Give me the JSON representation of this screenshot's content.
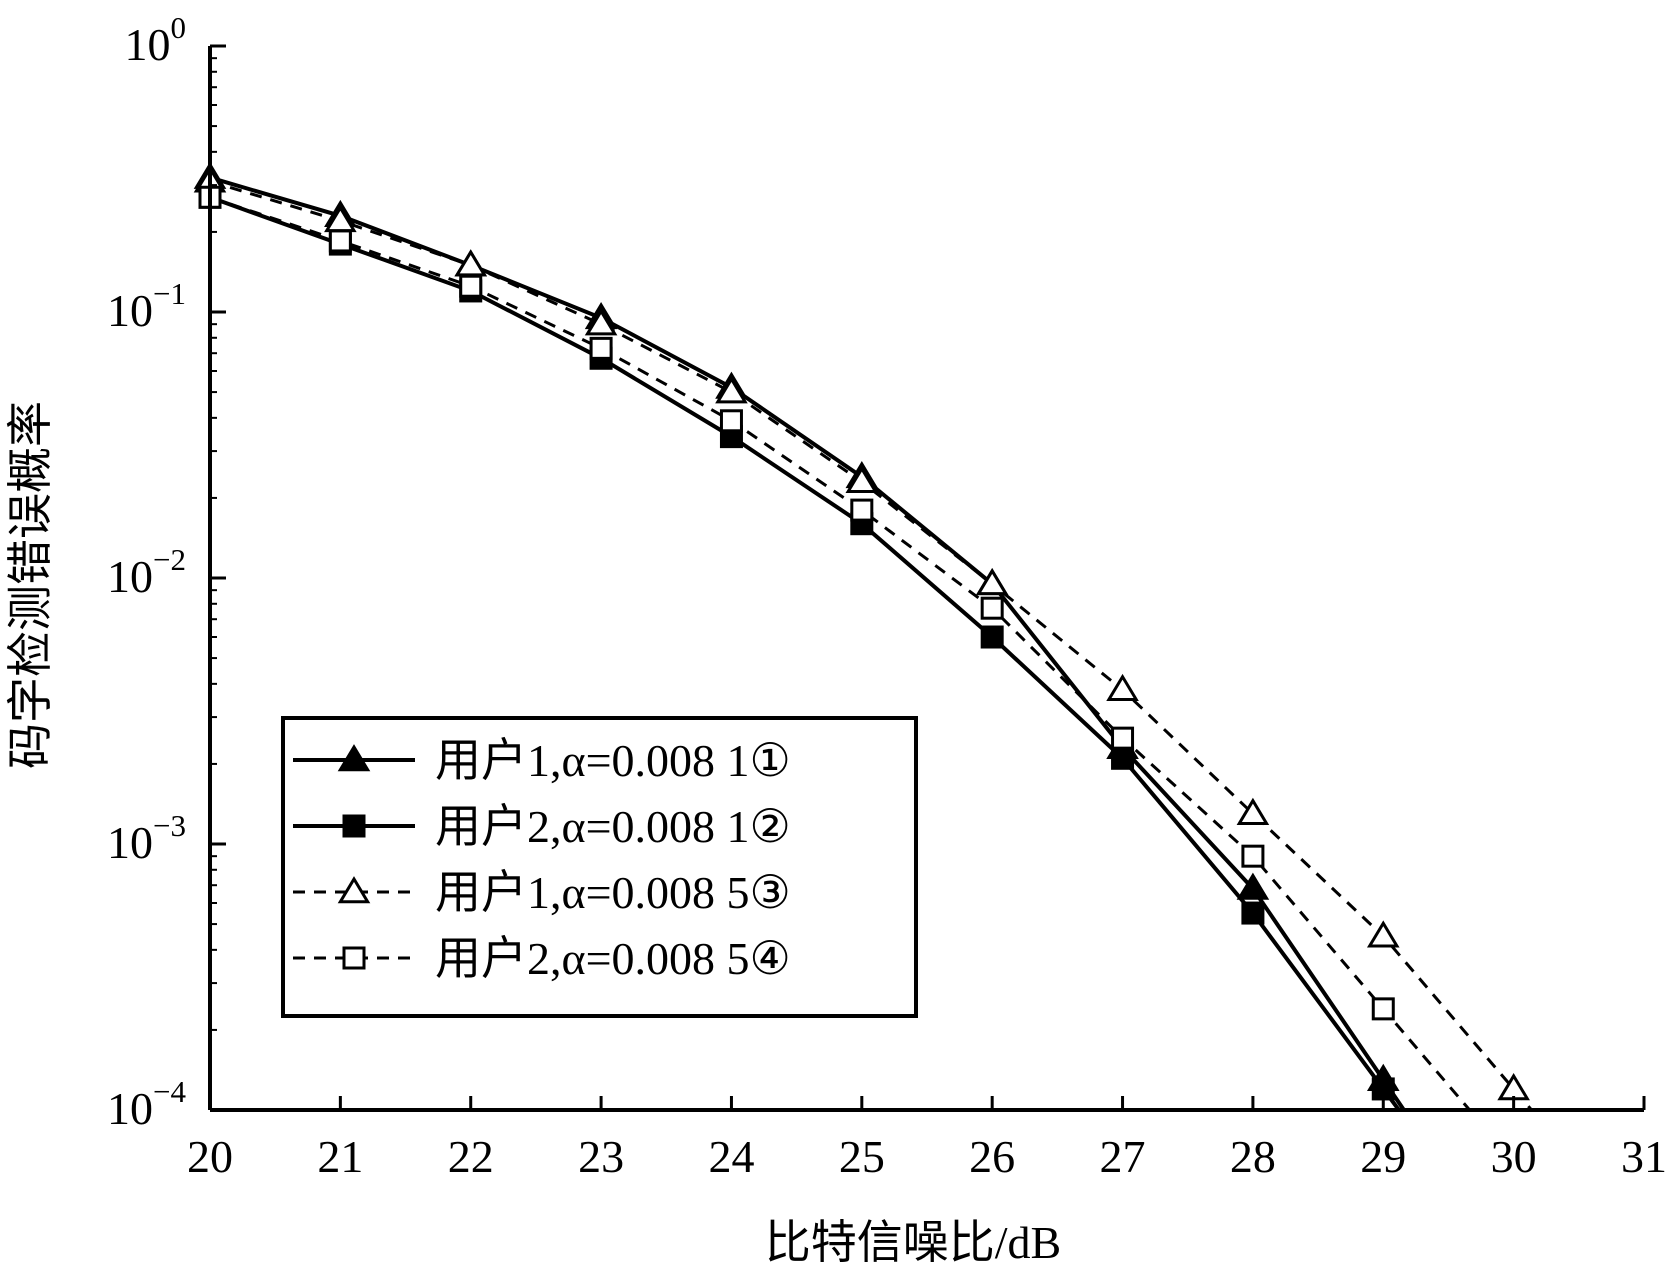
{
  "chart_data": {
    "type": "line",
    "title": "",
    "xlabel": "比特信噪比/dB",
    "ylabel": "码字检测错误概率",
    "x_ticks": [
      "20",
      "21",
      "22",
      "23",
      "24",
      "25",
      "26",
      "27",
      "28",
      "29",
      "30",
      "31"
    ],
    "xlim": [
      20,
      31
    ],
    "ylim": [
      0.0001,
      1
    ],
    "y_scale": "log",
    "y_ticks": [
      {
        "value": 1,
        "base": "10",
        "exp": "0"
      },
      {
        "value": 0.1,
        "base": "10",
        "exp": "−1"
      },
      {
        "value": 0.01,
        "base": "10",
        "exp": "−2"
      },
      {
        "value": 0.001,
        "base": "10",
        "exp": "−3"
      },
      {
        "value": 0.0001,
        "base": "10",
        "exp": "−4"
      }
    ],
    "grid": false,
    "legend_position": "lower-left",
    "series": [
      {
        "name": "用户1,α=0.008 1①",
        "line": "solid",
        "marker": "triangle-filled",
        "color": "#000000",
        "x": [
          20,
          21,
          22,
          23,
          24,
          25,
          26,
          27,
          28,
          29
        ],
        "y": [
          0.32,
          0.23,
          0.15,
          0.095,
          0.052,
          0.024,
          0.0095,
          0.0023,
          0.00068,
          0.00013
        ]
      },
      {
        "name": "用户2,α=0.008 1②",
        "line": "solid",
        "marker": "square-filled",
        "color": "#000000",
        "x": [
          20,
          21,
          22,
          23,
          24,
          25,
          26,
          27,
          28,
          29
        ],
        "y": [
          0.27,
          0.18,
          0.12,
          0.067,
          0.034,
          0.016,
          0.006,
          0.0021,
          0.00055,
          0.00012
        ]
      },
      {
        "name": "用户1,α=0.008 5③",
        "line": "dashed",
        "marker": "triangle-open",
        "color": "#000000",
        "x": [
          20,
          21,
          22,
          23,
          24,
          25,
          26,
          27,
          28,
          29,
          30
        ],
        "y": [
          0.31,
          0.22,
          0.15,
          0.09,
          0.05,
          0.023,
          0.0095,
          0.0038,
          0.0013,
          0.00045,
          0.00012
        ]
      },
      {
        "name": "用户2,α=0.008 5④",
        "line": "dashed",
        "marker": "square-open",
        "color": "#000000",
        "x": [
          20,
          21,
          22,
          23,
          24,
          25,
          26,
          27,
          28,
          29
        ],
        "y": [
          0.27,
          0.185,
          0.125,
          0.073,
          0.039,
          0.018,
          0.0077,
          0.0025,
          0.0009,
          0.00024
        ]
      }
    ]
  }
}
